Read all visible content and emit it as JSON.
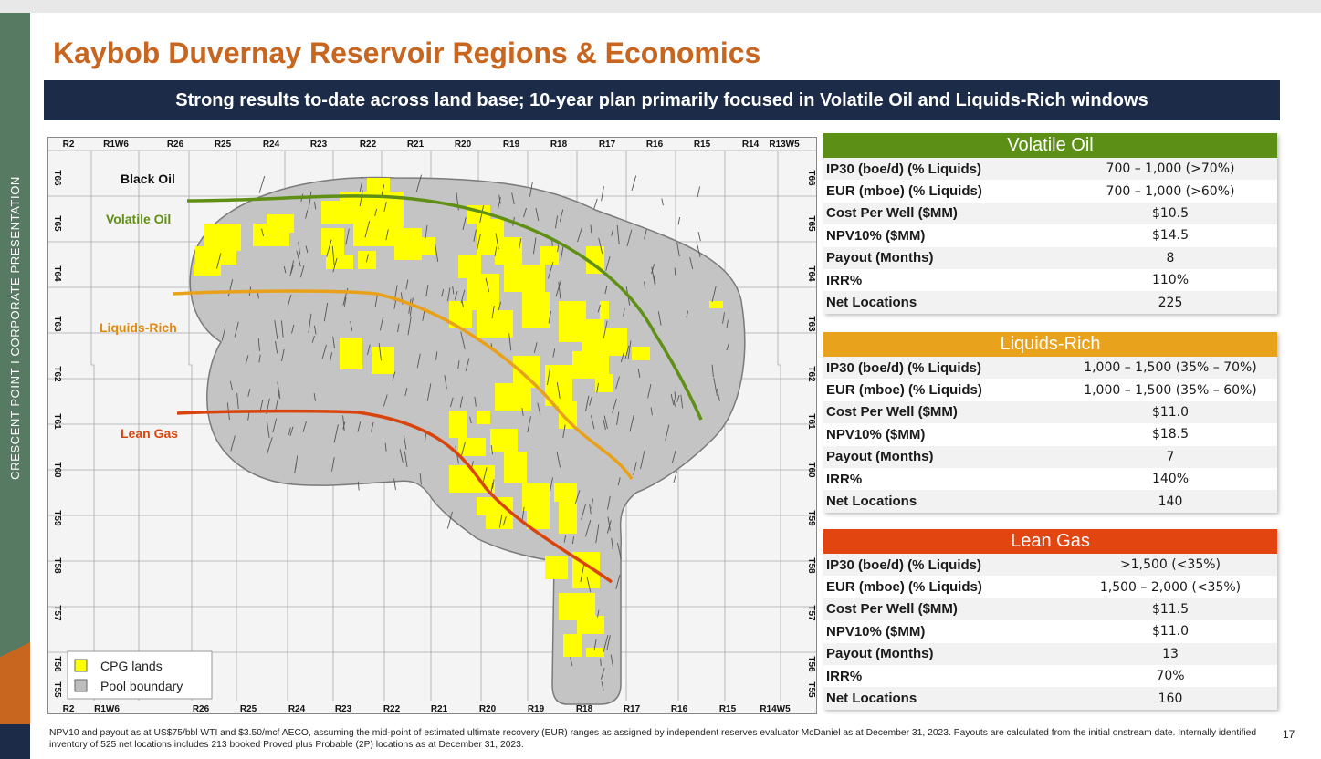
{
  "sidebar": {
    "text": "CRESCENT POINT   I   CORPORATE PRESENTATION"
  },
  "title": "Kaybob Duvernay Reservoir Regions & Economics",
  "banner": "Strong results to-date across land base; 10-year plan primarily focused in Volatile Oil and Liquids-Rich windows",
  "map": {
    "ranges_top": [
      "R2",
      "R1W6",
      "R26",
      "R25",
      "R24",
      "R23",
      "R22",
      "R21",
      "R20",
      "R19",
      "R18",
      "R17",
      "R16",
      "R15",
      "R14",
      "R13W5"
    ],
    "ranges_bottom": [
      "R2",
      "R1W6",
      "R26",
      "R25",
      "R24",
      "R23",
      "R22",
      "R21",
      "R20",
      "R19",
      "R18",
      "R17",
      "R16",
      "R15",
      "R14W5"
    ],
    "townships": [
      "T66",
      "T65",
      "T64",
      "T63",
      "T62",
      "T61",
      "T60",
      "T59",
      "T58",
      "T57",
      "T56",
      "T55"
    ],
    "zone_labels": {
      "black_oil": "Black Oil",
      "volatile_oil": "Volatile Oil",
      "liquids_rich": "Liquids-Rich",
      "lean_gas": "Lean Gas"
    },
    "legend": {
      "cpg_lands": "CPG lands",
      "pool_boundary": "Pool boundary"
    },
    "colors": {
      "cpg_lands": "#ffff00",
      "pool": "#c4c4c4",
      "volatile_oil_line": "#5f8f14",
      "liquids_rich_line": "#e9a11a",
      "lean_gas_line": "#d9440c"
    }
  },
  "tables": [
    {
      "name": "Volatile Oil",
      "color": "#5b8f16",
      "rows": [
        {
          "label": "IP30 (boe/d) (% Liquids)",
          "value": "700 – 1,000 (>70%)"
        },
        {
          "label": "EUR (mboe) (% Liquids)",
          "value": "700 – 1,000 (>60%)"
        },
        {
          "label": "Cost Per Well ($MM)",
          "value": "$10.5"
        },
        {
          "label": "NPV10% ($MM)",
          "value": "$14.5"
        },
        {
          "label": "Payout (Months)",
          "value": "8"
        },
        {
          "label": "IRR%",
          "value": "110%"
        },
        {
          "label": "Net Locations",
          "value": "225"
        }
      ]
    },
    {
      "name": "Liquids-Rich",
      "color": "#e9a21b",
      "rows": [
        {
          "label": "IP30 (boe/d) (% Liquids)",
          "value": "1,000 – 1,500 (35% – 70%)"
        },
        {
          "label": "EUR (mboe) (% Liquids)",
          "value": "1,000 – 1,500 (35% – 60%)"
        },
        {
          "label": "Cost Per Well ($MM)",
          "value": "$11.0"
        },
        {
          "label": "NPV10% ($MM)",
          "value": "$18.5"
        },
        {
          "label": "Payout (Months)",
          "value": "7"
        },
        {
          "label": "IRR%",
          "value": "140%"
        },
        {
          "label": "Net Locations",
          "value": "140"
        }
      ]
    },
    {
      "name": "Lean Gas",
      "color": "#e34511",
      "rows": [
        {
          "label": "IP30 (boe/d) (% Liquids)",
          "value": ">1,500 (<35%)"
        },
        {
          "label": "EUR (mboe) (% Liquids)",
          "value": "1,500 – 2,000 (<35%)"
        },
        {
          "label": "Cost Per Well ($MM)",
          "value": "$11.5"
        },
        {
          "label": "NPV10% ($MM)",
          "value": "$11.0"
        },
        {
          "label": "Payout (Months)",
          "value": "13"
        },
        {
          "label": "IRR%",
          "value": "70%"
        },
        {
          "label": "Net Locations",
          "value": "160"
        }
      ]
    }
  ],
  "footnote": "NPV10 and payout as at US$75/bbl WTI and $3.50/mcf AECO, assuming the mid-point of estimated ultimate recovery (EUR) ranges as assigned by independent reserves evaluator McDaniel as at December 31, 2023. Payouts are calculated from the initial onstream date. Internally identified inventory of 525 net locations includes 213 booked Proved plus Probable (2P) locations as at December 31, 2023.",
  "page_number": "17"
}
